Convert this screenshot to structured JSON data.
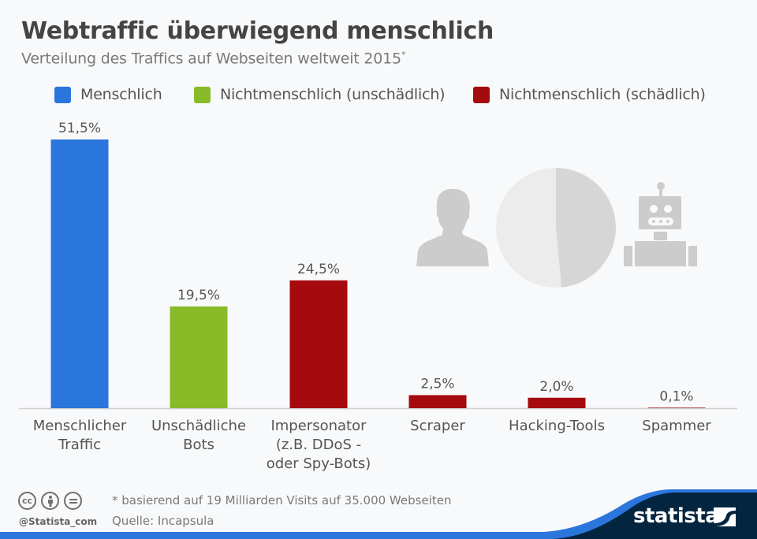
{
  "header": {
    "title": "Webtraffic überwiegend menschlich",
    "subtitle": "Verteilung des Traffics auf Webseiten weltweit 2015",
    "subtitle_mark": "*"
  },
  "legend": [
    {
      "label": "Menschlich",
      "color": "#2a76dd"
    },
    {
      "label": "Nichtmenschlich (unschädlich)",
      "color": "#88bb27"
    },
    {
      "label": "Nichtmenschlich (schädlich)",
      "color": "#a50a0e"
    }
  ],
  "illustration": {
    "left_icon": "person-silhouette-icon",
    "center": "pie-icon",
    "right_icon": "robot-icon",
    "pie_split_percent": [
      51.5,
      48.5
    ],
    "colors": {
      "icon": "#cccccc",
      "pie_light": "#ececec",
      "pie_dark": "#d6d6d6"
    }
  },
  "chart_data": {
    "type": "bar",
    "title": "Webtraffic überwiegend menschlich",
    "subtitle": "Verteilung des Traffics auf Webseiten weltweit 2015*",
    "categories": [
      [
        "Menschlicher",
        "Traffic"
      ],
      [
        "Unschädliche",
        "Bots"
      ],
      [
        "Impersonator",
        "(z.B. DDoS -",
        "oder Spy-Bots)"
      ],
      [
        "Scraper"
      ],
      [
        "Hacking-Tools"
      ],
      [
        "Spammer"
      ]
    ],
    "values": [
      51.5,
      19.5,
      24.5,
      2.5,
      2.0,
      0.1
    ],
    "value_labels": [
      "51,5%",
      "19,5%",
      "24,5%",
      "2,5%",
      "2,0%",
      "0,1%"
    ],
    "groups": [
      "Menschlich",
      "Nichtmenschlich (unschädlich)",
      "Nichtmenschlich (schädlich)",
      "Nichtmenschlich (schädlich)",
      "Nichtmenschlich (schädlich)",
      "Nichtmenschlich (schädlich)"
    ],
    "colors": [
      "#2a76dd",
      "#88bb27",
      "#a50a0e",
      "#a50a0e",
      "#a50a0e",
      "#a50a0e"
    ],
    "xlabel": "",
    "ylabel": "",
    "ylim": [
      0,
      51.5
    ],
    "grid": false,
    "legend_position": "top"
  },
  "footer": {
    "cc_icons": [
      "cc",
      "by",
      "nd"
    ],
    "handle": "@Statista_com",
    "note": "* basierend auf 19 Milliarden Visits auf 35.000 Webseiten",
    "source": "Quelle: Incapsula",
    "brand": "statista",
    "brand_colors": {
      "dark": "#03253f",
      "accent": "#2a76dd"
    }
  }
}
